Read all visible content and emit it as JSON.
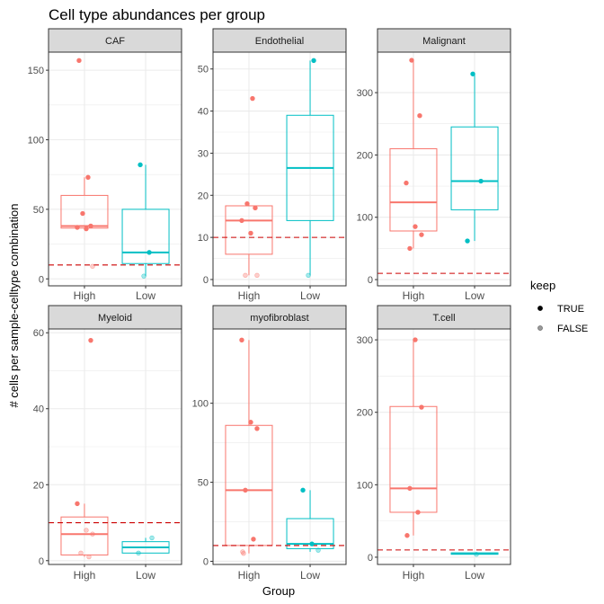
{
  "title": "Cell type abundances per group",
  "xlabel": "Group",
  "ylabel": "# cells per sample-celltype combination",
  "legend": {
    "title": "keep",
    "entries": [
      {
        "label": "TRUE",
        "alpha": 1.0
      },
      {
        "label": "FALSE",
        "alpha": 0.4
      }
    ]
  },
  "colors": {
    "High": "#F8766D",
    "Low": "#00BFC4",
    "threshold": "#CC0000",
    "strip_bg": "#D9D9D9",
    "grid": "#EBEBEB",
    "panel_border": "#333333",
    "tick_label": "#4D4D4D"
  },
  "chart_data": {
    "type": "boxplot",
    "groups": [
      "High",
      "Low"
    ],
    "threshold": 10,
    "panels": [
      {
        "name": "CAF",
        "ylim": [
          -5,
          163
        ],
        "yticks": [
          0,
          50,
          100,
          150
        ],
        "boxes": {
          "High": {
            "min": 36,
            "q1": 36.5,
            "median": 38,
            "q3": 60,
            "max": 73
          },
          "Low": {
            "min": 2,
            "q1": 11,
            "median": 19,
            "q3": 50,
            "max": 82
          }
        },
        "points": [
          {
            "group": "High",
            "value": 157,
            "keep": true
          },
          {
            "group": "High",
            "value": 73,
            "keep": true
          },
          {
            "group": "High",
            "value": 47,
            "keep": true
          },
          {
            "group": "High",
            "value": 38,
            "keep": true
          },
          {
            "group": "High",
            "value": 37,
            "keep": true
          },
          {
            "group": "High",
            "value": 36,
            "keep": true
          },
          {
            "group": "High",
            "value": 9,
            "keep": false
          },
          {
            "group": "Low",
            "value": 82,
            "keep": true
          },
          {
            "group": "Low",
            "value": 19,
            "keep": true
          },
          {
            "group": "Low",
            "value": 2,
            "keep": false
          }
        ]
      },
      {
        "name": "Endothelial",
        "ylim": [
          -1.5,
          54
        ],
        "yticks": [
          0,
          10,
          20,
          30,
          40,
          50
        ],
        "boxes": {
          "High": {
            "min": 1,
            "q1": 6,
            "median": 14,
            "q3": 17.5,
            "max": 18
          },
          "Low": {
            "min": 1,
            "q1": 14,
            "median": 26.5,
            "q3": 39,
            "max": 52
          }
        },
        "points": [
          {
            "group": "High",
            "value": 43,
            "keep": true
          },
          {
            "group": "High",
            "value": 18,
            "keep": true
          },
          {
            "group": "High",
            "value": 17,
            "keep": true
          },
          {
            "group": "High",
            "value": 14,
            "keep": true
          },
          {
            "group": "High",
            "value": 11,
            "keep": true
          },
          {
            "group": "High",
            "value": 1,
            "keep": false
          },
          {
            "group": "High",
            "value": 1,
            "keep": false
          },
          {
            "group": "Low",
            "value": 52,
            "keep": true
          },
          {
            "group": "Low",
            "value": 1,
            "keep": false
          }
        ]
      },
      {
        "name": "Malignant",
        "ylim": [
          -10,
          365
        ],
        "yticks": [
          0,
          100,
          200,
          300
        ],
        "boxes": {
          "High": {
            "min": 50,
            "q1": 78,
            "median": 124,
            "q3": 210,
            "max": 352
          },
          "Low": {
            "min": 62,
            "q1": 112,
            "median": 158,
            "q3": 245,
            "max": 330
          }
        },
        "points": [
          {
            "group": "High",
            "value": 352,
            "keep": true
          },
          {
            "group": "High",
            "value": 263,
            "keep": true
          },
          {
            "group": "High",
            "value": 155,
            "keep": true
          },
          {
            "group": "High",
            "value": 85,
            "keep": true
          },
          {
            "group": "High",
            "value": 72,
            "keep": true
          },
          {
            "group": "High",
            "value": 50,
            "keep": true
          },
          {
            "group": "Low",
            "value": 330,
            "keep": true
          },
          {
            "group": "Low",
            "value": 158,
            "keep": true
          },
          {
            "group": "Low",
            "value": 62,
            "keep": true
          }
        ]
      },
      {
        "name": "Myeloid",
        "ylim": [
          -1,
          61
        ],
        "yticks": [
          0,
          20,
          40,
          60
        ],
        "boxes": {
          "High": {
            "min": 1,
            "q1": 1.5,
            "median": 7,
            "q3": 11.5,
            "max": 15
          },
          "Low": {
            "min": 2,
            "q1": 2,
            "median": 3.5,
            "q3": 5,
            "max": 6
          }
        },
        "points": [
          {
            "group": "High",
            "value": 58,
            "keep": true
          },
          {
            "group": "High",
            "value": 15,
            "keep": true
          },
          {
            "group": "High",
            "value": 8,
            "keep": false
          },
          {
            "group": "High",
            "value": 7,
            "keep": false
          },
          {
            "group": "High",
            "value": 2,
            "keep": false
          },
          {
            "group": "High",
            "value": 1,
            "keep": false
          },
          {
            "group": "Low",
            "value": 6,
            "keep": false
          },
          {
            "group": "Low",
            "value": 2,
            "keep": false
          }
        ]
      },
      {
        "name": "myofibroblast",
        "ylim": [
          -2,
          147
        ],
        "yticks": [
          0,
          50,
          100
        ],
        "boxes": {
          "High": {
            "min": 5,
            "q1": 10,
            "median": 45,
            "q3": 86,
            "max": 140
          },
          "Low": {
            "min": 6,
            "q1": 8,
            "median": 11,
            "q3": 27,
            "max": 45
          }
        },
        "points": [
          {
            "group": "High",
            "value": 140,
            "keep": true
          },
          {
            "group": "High",
            "value": 88,
            "keep": true
          },
          {
            "group": "High",
            "value": 84,
            "keep": true
          },
          {
            "group": "High",
            "value": 45,
            "keep": true
          },
          {
            "group": "High",
            "value": 14,
            "keep": true
          },
          {
            "group": "High",
            "value": 6,
            "keep": false
          },
          {
            "group": "High",
            "value": 5,
            "keep": false
          },
          {
            "group": "Low",
            "value": 45,
            "keep": true
          },
          {
            "group": "Low",
            "value": 11,
            "keep": true
          },
          {
            "group": "Low",
            "value": 7,
            "keep": false
          }
        ]
      },
      {
        "name": "T.cell",
        "ylim": [
          -10,
          315
        ],
        "yticks": [
          0,
          100,
          200,
          300
        ],
        "boxes": {
          "High": {
            "min": 30,
            "q1": 62,
            "median": 95,
            "q3": 208,
            "max": 300
          },
          "Low": {
            "min": 4,
            "q1": 4,
            "median": 5,
            "q3": 6,
            "max": 6
          }
        },
        "points": [
          {
            "group": "High",
            "value": 300,
            "keep": true
          },
          {
            "group": "High",
            "value": 207,
            "keep": true
          },
          {
            "group": "High",
            "value": 95,
            "keep": true
          },
          {
            "group": "High",
            "value": 62,
            "keep": true
          },
          {
            "group": "High",
            "value": 30,
            "keep": true
          },
          {
            "group": "Low",
            "value": 4,
            "keep": false
          }
        ]
      }
    ]
  }
}
